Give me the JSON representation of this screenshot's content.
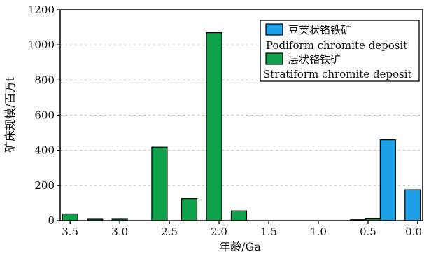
{
  "chart_data": {
    "type": "bar",
    "title": "",
    "xlabel": "年龄/Ga",
    "ylabel": "矿床规模/百万t",
    "xlim": [
      3.6,
      -0.05
    ],
    "ylim": [
      0,
      1200
    ],
    "x_ticks": [
      "3.5",
      "3.0",
      "2.5",
      "2.0",
      "1.5",
      "1.0",
      "0.5",
      "0.0"
    ],
    "x_tick_values": [
      3.5,
      3.0,
      2.5,
      2.0,
      1.5,
      1.0,
      0.5,
      0.0
    ],
    "y_ticks": [
      "0",
      "200",
      "400",
      "600",
      "800",
      "1000",
      "1200"
    ],
    "y_tick_values": [
      0,
      200,
      400,
      600,
      800,
      1000,
      1200
    ],
    "grid": "horizontal-dashed",
    "legend_position": "top-right",
    "legend_entries": [
      {
        "label_cn": "豆荚状铬铁矿",
        "label_en": "Podiform chromite deposit",
        "color": "#1ea0e6"
      },
      {
        "label_cn": "层状铬铁矿",
        "label_en": "Stratiform chromite deposit",
        "color": "#0da14a"
      }
    ],
    "series": [
      {
        "key": "podiform",
        "color": "#1ea0e6",
        "bars": [
          {
            "x": 0.3,
            "value": 460
          },
          {
            "x": 0.05,
            "value": 175
          }
        ]
      },
      {
        "key": "stratiform",
        "color": "#0da14a",
        "bars": [
          {
            "x": 3.5,
            "value": 38
          },
          {
            "x": 3.25,
            "value": 8
          },
          {
            "x": 3.0,
            "value": 8
          },
          {
            "x": 2.6,
            "value": 418
          },
          {
            "x": 2.3,
            "value": 125
          },
          {
            "x": 2.05,
            "value": 1070
          },
          {
            "x": 1.8,
            "value": 55
          },
          {
            "x": 0.6,
            "value": 5
          },
          {
            "x": 0.45,
            "value": 10
          }
        ]
      }
    ]
  }
}
